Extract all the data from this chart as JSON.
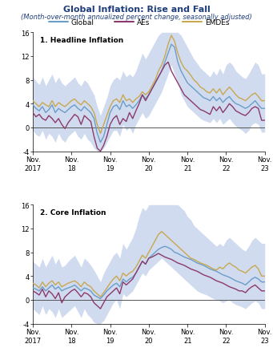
{
  "title": "Global Inflation: Rise and Fall",
  "subtitle": "(Month-over-month annualized percent change, seasonally adjusted)",
  "title_color": "#1F3D7A",
  "subtitle_color": "#1F3D7A",
  "legend_labels": [
    "Global",
    "AEs",
    "EMDEs"
  ],
  "line_colors": [
    "#6B9DC9",
    "#8B3A6B",
    "#C8A850"
  ],
  "shade_color": "#B8C8E8",
  "panel1_title": "1. Headline Inflation",
  "panel2_title": "2. Core Inflation",
  "ylim": [
    -4,
    16
  ],
  "yticks": [
    -4,
    0,
    4,
    8,
    12,
    16
  ],
  "x_start": 0,
  "x_end": 72,
  "xtick_positions": [
    0,
    12,
    24,
    36,
    48,
    60,
    72
  ],
  "xtick_labels_top": [
    "Nov.",
    "Nov.",
    "Nov.",
    "Nov.",
    "Nov.",
    "Nov.",
    "Nov."
  ],
  "xtick_labels_bottom": [
    "2017",
    "18",
    "19",
    "20",
    "21",
    "22",
    "23"
  ],
  "headline_global": [
    3.8,
    3.2,
    2.8,
    3.5,
    2.5,
    3.0,
    3.8,
    2.5,
    3.2,
    2.8,
    2.5,
    3.0,
    3.5,
    3.8,
    3.2,
    2.8,
    3.5,
    3.0,
    2.5,
    1.5,
    -1.0,
    -2.5,
    -1.5,
    0.5,
    2.5,
    3.5,
    3.8,
    3.0,
    4.5,
    3.5,
    3.8,
    3.2,
    3.8,
    4.5,
    5.5,
    4.8,
    5.5,
    6.5,
    7.5,
    8.5,
    9.5,
    11.0,
    12.5,
    14.0,
    13.5,
    11.0,
    9.5,
    8.5,
    7.5,
    7.0,
    6.5,
    6.0,
    5.5,
    5.0,
    4.8,
    4.5,
    5.2,
    4.5,
    5.0,
    4.2,
    4.8,
    5.2,
    4.5,
    4.0,
    3.8,
    3.5,
    3.2,
    3.5,
    4.0,
    4.5,
    3.8,
    3.2
  ],
  "headline_aes": [
    2.5,
    1.8,
    2.2,
    1.5,
    1.2,
    2.0,
    1.5,
    0.8,
    1.5,
    0.5,
    -0.2,
    0.8,
    1.5,
    2.2,
    1.8,
    0.5,
    2.0,
    1.5,
    1.0,
    -1.5,
    -3.5,
    -4.0,
    -3.0,
    -1.5,
    0.5,
    1.5,
    2.0,
    0.5,
    1.5,
    1.0,
    2.5,
    1.5,
    2.8,
    4.0,
    5.5,
    4.5,
    5.5,
    6.5,
    7.5,
    8.5,
    9.5,
    10.5,
    11.0,
    9.5,
    8.5,
    7.5,
    6.5,
    5.5,
    5.0,
    4.5,
    4.0,
    3.5,
    3.0,
    2.8,
    2.5,
    2.2,
    3.5,
    2.8,
    3.5,
    2.5,
    3.2,
    4.0,
    3.5,
    2.8,
    2.5,
    2.2,
    2.0,
    2.5,
    3.2,
    3.5,
    3.2,
    1.2
  ],
  "headline_emdes": [
    4.5,
    4.0,
    3.5,
    4.2,
    3.8,
    3.5,
    4.5,
    3.5,
    4.2,
    3.8,
    3.5,
    4.0,
    4.5,
    4.8,
    4.2,
    3.8,
    4.5,
    4.0,
    3.5,
    2.5,
    0.5,
    -1.0,
    0.5,
    2.0,
    3.5,
    4.5,
    4.8,
    4.2,
    5.5,
    4.5,
    4.8,
    4.2,
    4.8,
    5.2,
    6.0,
    5.5,
    6.0,
    7.0,
    8.0,
    9.5,
    10.5,
    12.0,
    14.0,
    15.5,
    14.5,
    12.5,
    11.0,
    10.0,
    9.5,
    8.8,
    8.0,
    7.5,
    6.8,
    6.5,
    6.0,
    5.8,
    6.5,
    5.8,
    6.5,
    5.5,
    6.2,
    6.8,
    6.2,
    5.5,
    5.0,
    4.8,
    4.5,
    5.0,
    5.5,
    5.8,
    5.2,
    4.5
  ],
  "headline_shade_upper": [
    8.5,
    7.8,
    7.2,
    8.5,
    7.0,
    8.0,
    9.0,
    7.5,
    8.5,
    7.5,
    7.0,
    7.5,
    8.0,
    8.5,
    7.5,
    7.0,
    8.0,
    7.5,
    6.5,
    5.5,
    3.5,
    2.0,
    3.5,
    5.0,
    7.0,
    8.0,
    8.5,
    8.0,
    9.5,
    8.5,
    9.0,
    8.5,
    9.5,
    11.0,
    12.5,
    11.5,
    12.5,
    13.5,
    14.5,
    15.5,
    16.0,
    16.0,
    16.0,
    16.0,
    16.0,
    16.0,
    15.5,
    14.5,
    13.5,
    12.5,
    11.5,
    10.8,
    10.0,
    9.5,
    9.0,
    8.5,
    9.5,
    8.8,
    10.0,
    9.0,
    10.5,
    11.0,
    10.5,
    9.5,
    9.0,
    8.5,
    8.2,
    9.0,
    10.0,
    11.0,
    10.5,
    9.0
  ],
  "headline_shade_lower": [
    -0.5,
    -1.2,
    -1.5,
    -0.5,
    -2.0,
    -1.0,
    -1.5,
    -2.5,
    -1.0,
    -2.0,
    -2.5,
    -1.5,
    -1.0,
    -0.5,
    -1.5,
    -2.0,
    -1.0,
    -2.0,
    -2.5,
    -3.5,
    -4.0,
    -4.0,
    -3.5,
    -2.5,
    -1.5,
    -0.5,
    -0.5,
    -1.5,
    0.5,
    -0.5,
    0.0,
    -1.0,
    0.5,
    1.5,
    2.5,
    1.5,
    2.0,
    3.0,
    4.0,
    5.0,
    6.0,
    7.5,
    9.0,
    10.5,
    9.0,
    7.5,
    5.5,
    4.5,
    3.5,
    3.0,
    2.5,
    2.0,
    1.5,
    1.2,
    1.0,
    0.8,
    1.5,
    0.8,
    1.5,
    0.5,
    1.0,
    1.5,
    0.8,
    0.2,
    -0.2,
    -0.5,
    -1.0,
    -0.5,
    0.5,
    0.8,
    0.5,
    -0.8
  ],
  "core_global": [
    2.0,
    1.8,
    1.5,
    2.2,
    1.5,
    2.0,
    2.5,
    1.8,
    2.2,
    1.5,
    1.8,
    2.0,
    2.2,
    2.5,
    2.0,
    1.5,
    2.0,
    1.8,
    1.5,
    0.8,
    0.5,
    0.2,
    0.8,
    1.5,
    2.0,
    2.5,
    2.8,
    2.2,
    3.5,
    3.0,
    3.5,
    3.8,
    4.5,
    5.5,
    6.5,
    6.0,
    7.0,
    7.5,
    8.0,
    8.5,
    8.8,
    9.0,
    8.8,
    8.5,
    8.0,
    7.8,
    7.5,
    7.2,
    7.0,
    6.8,
    6.5,
    6.2,
    6.0,
    5.8,
    5.5,
    5.2,
    5.0,
    4.8,
    4.5,
    4.2,
    4.0,
    3.8,
    3.5,
    3.2,
    3.0,
    2.8,
    2.5,
    3.0,
    3.5,
    3.8,
    3.5,
    3.0
  ],
  "core_aes": [
    1.5,
    1.2,
    0.8,
    1.8,
    0.5,
    1.5,
    1.0,
    0.2,
    1.2,
    -0.5,
    0.5,
    1.0,
    1.5,
    1.8,
    1.2,
    0.5,
    1.2,
    1.0,
    0.5,
    -0.5,
    -1.0,
    -1.5,
    -0.5,
    0.5,
    1.0,
    1.5,
    2.0,
    1.0,
    3.0,
    2.5,
    3.0,
    3.5,
    4.5,
    5.5,
    6.5,
    6.0,
    7.0,
    7.2,
    7.5,
    7.8,
    7.5,
    7.2,
    7.0,
    6.8,
    6.5,
    6.2,
    6.0,
    5.8,
    5.5,
    5.2,
    5.0,
    4.8,
    4.5,
    4.2,
    4.0,
    3.8,
    3.5,
    3.2,
    3.0,
    2.8,
    2.5,
    2.2,
    2.0,
    1.8,
    1.5,
    1.5,
    1.2,
    1.8,
    2.2,
    2.5,
    2.0,
    1.5
  ],
  "core_emdes": [
    2.8,
    2.5,
    2.0,
    3.0,
    2.2,
    2.8,
    3.2,
    2.5,
    3.0,
    2.2,
    2.5,
    2.8,
    3.0,
    3.2,
    2.8,
    2.2,
    3.0,
    2.5,
    2.2,
    1.5,
    1.0,
    0.5,
    1.2,
    2.0,
    2.8,
    3.5,
    4.0,
    3.2,
    4.5,
    4.0,
    4.5,
    4.8,
    5.5,
    6.5,
    7.5,
    7.0,
    8.0,
    9.0,
    10.0,
    11.0,
    11.5,
    11.0,
    10.5,
    10.0,
    9.5,
    9.0,
    8.5,
    8.0,
    7.5,
    7.0,
    6.8,
    6.5,
    6.2,
    6.0,
    5.8,
    5.5,
    5.2,
    5.0,
    5.5,
    5.2,
    5.8,
    6.2,
    5.8,
    5.5,
    5.0,
    4.8,
    4.5,
    5.0,
    5.5,
    5.8,
    5.2,
    4.0
  ],
  "core_shade_upper": [
    6.5,
    6.0,
    5.5,
    7.0,
    5.5,
    6.5,
    7.5,
    6.0,
    7.0,
    5.5,
    5.8,
    6.5,
    7.0,
    7.5,
    6.5,
    5.5,
    7.0,
    6.5,
    5.8,
    5.0,
    4.0,
    3.0,
    4.5,
    5.5,
    6.5,
    7.5,
    8.0,
    7.0,
    9.5,
    8.5,
    9.5,
    10.5,
    12.0,
    14.0,
    15.5,
    15.0,
    16.0,
    16.0,
    16.0,
    16.0,
    16.0,
    16.0,
    16.0,
    16.0,
    16.0,
    16.0,
    15.5,
    15.0,
    14.0,
    13.5,
    12.5,
    12.0,
    11.5,
    11.0,
    10.5,
    10.0,
    9.5,
    9.0,
    9.5,
    9.0,
    10.0,
    10.5,
    10.0,
    9.5,
    9.0,
    8.5,
    8.2,
    9.0,
    10.0,
    10.5,
    10.0,
    9.5
  ],
  "core_shade_lower": [
    -1.5,
    -2.0,
    -2.5,
    -1.0,
    -2.5,
    -1.5,
    -2.0,
    -3.0,
    -1.5,
    -3.0,
    -2.5,
    -2.0,
    -1.5,
    -1.0,
    -2.0,
    -3.0,
    -1.5,
    -2.5,
    -3.0,
    -3.8,
    -4.0,
    -4.0,
    -3.5,
    -2.5,
    -1.5,
    -0.5,
    0.0,
    -1.5,
    1.0,
    0.5,
    1.0,
    1.5,
    2.5,
    3.5,
    4.5,
    4.0,
    5.0,
    5.5,
    6.0,
    6.5,
    7.0,
    6.5,
    6.0,
    5.5,
    5.0,
    4.5,
    4.0,
    3.5,
    3.0,
    2.5,
    2.0,
    1.5,
    1.2,
    1.0,
    0.8,
    0.5,
    0.2,
    0.0,
    -0.2,
    -0.5,
    -0.2,
    0.0,
    -0.5,
    -0.8,
    -1.0,
    -1.2,
    -1.5,
    -1.0,
    -0.5,
    -0.2,
    -0.5,
    -1.5
  ]
}
